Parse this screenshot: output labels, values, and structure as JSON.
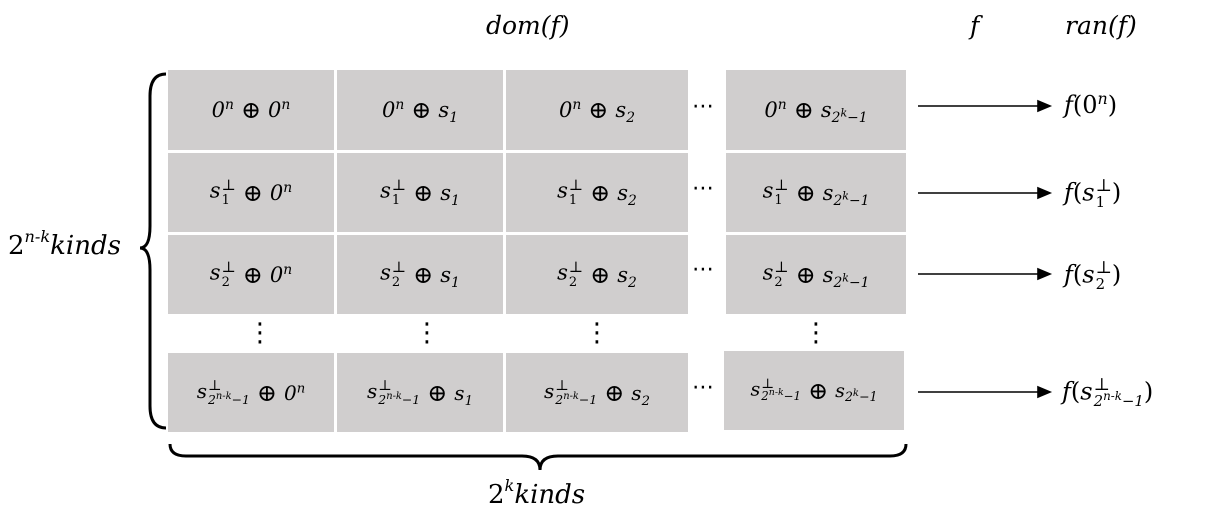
{
  "header": {
    "domain_label": "dom(f)",
    "map_label": "f",
    "range_label": "ran(f)"
  },
  "rows_label": "2^{n-k}kinds",
  "cols_label": "2^{k}kinds",
  "grid": {
    "row_prefixes": [
      "0^n",
      "s_1^⊥",
      "s_2^⊥",
      "s_{2^{n-k}-1}^⊥"
    ],
    "col_suffixes": [
      "0^n",
      "s_1",
      "s_2",
      "s_{2^k-1}"
    ],
    "operator": "⊕",
    "ellipsis": "⋯",
    "vertical_ellipsis": "⋮"
  },
  "outputs": [
    "f(0^n)",
    "f(s_1^⊥)",
    "f(s_2^⊥)",
    "f(s_{2^{n-k}-1}^⊥)"
  ]
}
